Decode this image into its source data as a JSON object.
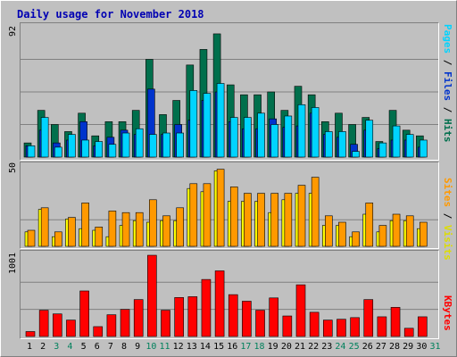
{
  "title": "Daily usage for November 2018",
  "colors": {
    "hits": "#006f4c",
    "files": "#0033cc",
    "pages": "#00d4ff",
    "visits": "#ffff00",
    "sites": "#ff9900",
    "kbytes": "#ff0000",
    "weekend_label": "#00805c",
    "weekday_label": "#000000",
    "gridline": "#808080"
  },
  "labels": {
    "top_max": "92",
    "mid_max": "50",
    "bot_max": "1001",
    "side_pages": "Pages",
    "side_files": "Files",
    "side_hits": "Hits",
    "side_sites": "Sites",
    "side_visits": "Visits",
    "side_kbytes": "KBytes",
    "sep": " / "
  },
  "chart_data": [
    {
      "type": "bar",
      "ylim": [
        0,
        92
      ],
      "categories": [
        "1",
        "2",
        "3",
        "4",
        "5",
        "6",
        "7",
        "8",
        "9",
        "10",
        "11",
        "12",
        "13",
        "14",
        "15",
        "16",
        "17",
        "18",
        "19",
        "20",
        "21",
        "22",
        "23",
        "24",
        "25",
        "26",
        "27",
        "28",
        "29",
        "30",
        "31"
      ],
      "weekend_days": [
        "3",
        "4",
        "10",
        "11",
        "17",
        "18",
        "24",
        "25",
        "31"
      ],
      "series": [
        {
          "name": "Hits",
          "values": [
            10,
            33,
            23,
            18,
            31,
            15,
            25,
            25,
            33,
            69,
            30,
            40,
            65,
            76,
            87,
            51,
            44,
            44,
            46,
            33,
            50,
            44,
            25,
            31,
            23,
            28,
            11,
            33,
            19,
            15,
            0
          ]
        },
        {
          "name": "Files",
          "values": [
            8,
            19,
            10,
            12,
            25,
            8,
            14,
            19,
            16,
            48,
            16,
            23,
            26,
            40,
            46,
            25,
            20,
            20,
            27,
            21,
            22,
            31,
            16,
            14,
            9,
            19,
            6,
            12,
            12,
            7,
            0
          ]
        },
        {
          "name": "Pages",
          "values": [
            8,
            28,
            7,
            16,
            12,
            11,
            9,
            17,
            20,
            16,
            17,
            17,
            47,
            45,
            52,
            28,
            28,
            31,
            23,
            29,
            37,
            35,
            18,
            18,
            4,
            26,
            10,
            22,
            16,
            12,
            0
          ]
        }
      ]
    },
    {
      "type": "bar",
      "ylim": [
        0,
        50
      ],
      "categories": [
        "1",
        "2",
        "3",
        "4",
        "5",
        "6",
        "7",
        "8",
        "9",
        "10",
        "11",
        "12",
        "13",
        "14",
        "15",
        "16",
        "17",
        "18",
        "19",
        "20",
        "21",
        "22",
        "23",
        "24",
        "25",
        "26",
        "27",
        "28",
        "29",
        "30",
        "31"
      ],
      "series": [
        {
          "name": "Visits",
          "values": [
            9,
            23,
            6,
            17,
            11,
            10,
            6,
            13,
            16,
            15,
            16,
            16,
            36,
            34,
            47,
            28,
            28,
            28,
            21,
            29,
            33,
            33,
            13,
            13,
            6,
            20,
            9,
            16,
            16,
            11,
            0
          ]
        },
        {
          "name": "Sites",
          "values": [
            10,
            24,
            9,
            18,
            27,
            12,
            22,
            21,
            21,
            29,
            19,
            24,
            39,
            39,
            48,
            37,
            33,
            33,
            33,
            33,
            38,
            43,
            19,
            15,
            9,
            27,
            13,
            20,
            19,
            15,
            0
          ]
        }
      ]
    },
    {
      "type": "bar",
      "ylim": [
        0,
        1001
      ],
      "categories": [
        "1",
        "2",
        "3",
        "4",
        "5",
        "6",
        "7",
        "8",
        "9",
        "10",
        "11",
        "12",
        "13",
        "14",
        "15",
        "16",
        "17",
        "18",
        "19",
        "20",
        "21",
        "22",
        "23",
        "24",
        "25",
        "26",
        "27",
        "28",
        "29",
        "30",
        "31"
      ],
      "series": [
        {
          "name": "KBytes",
          "values": [
            60,
            320,
            275,
            200,
            555,
            120,
            265,
            330,
            450,
            990,
            320,
            475,
            485,
            695,
            800,
            510,
            430,
            320,
            470,
            250,
            630,
            295,
            200,
            210,
            230,
            450,
            240,
            355,
            100,
            240,
            0
          ]
        }
      ]
    }
  ]
}
